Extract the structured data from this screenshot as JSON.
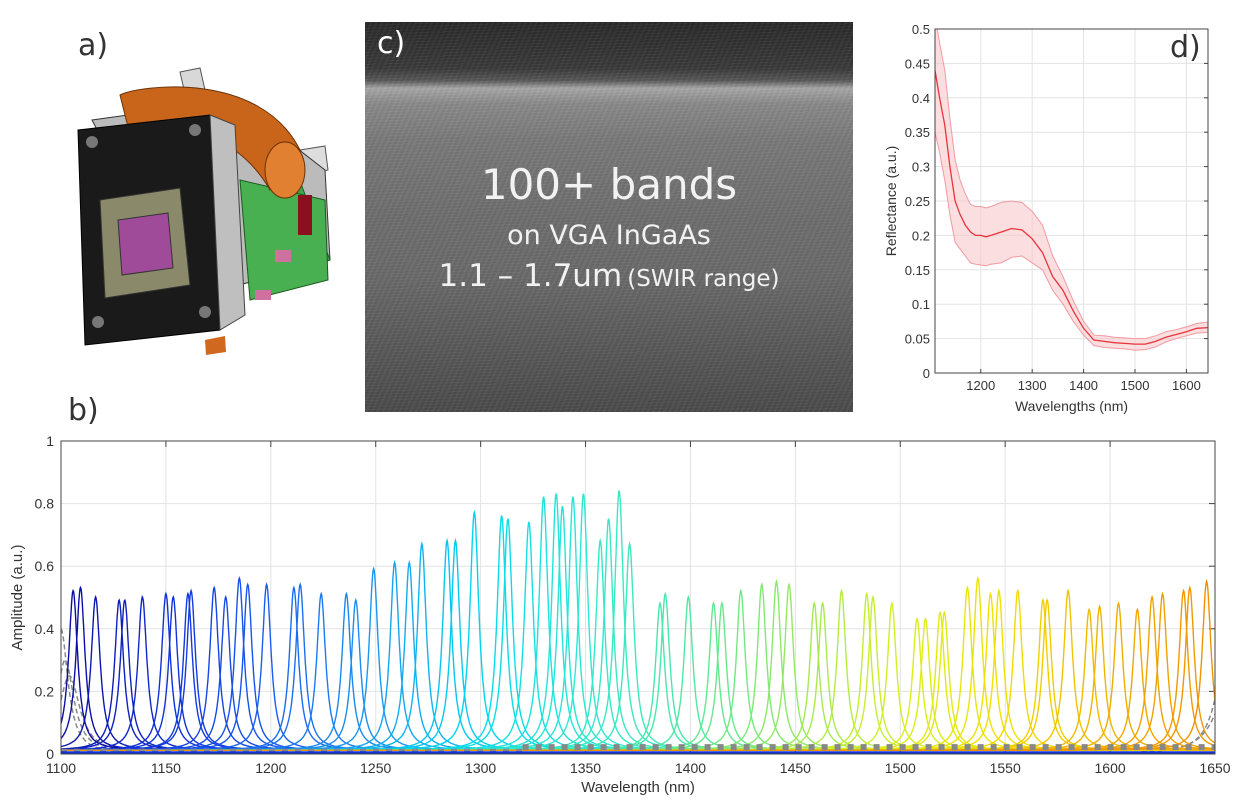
{
  "labels": {
    "a": "a)",
    "b": "b)",
    "c": "c)",
    "d": "d)"
  },
  "panel_c": {
    "line1": "100+ bands",
    "line2": "on VGA InGaAs",
    "line3_main": "1.1 – 1.7um",
    "line3_small": "(SWIR range)"
  },
  "chart_data": [
    {
      "id": "b",
      "type": "line",
      "xlabel": "Wavelength (nm)",
      "ylabel": "Amplitude (a.u.)",
      "xlim": [
        1100,
        1650
      ],
      "ylim": [
        0,
        1
      ],
      "xticks": [
        "1100",
        "1150",
        "1200",
        "1250",
        "1300",
        "1350",
        "1400",
        "1450",
        "1500",
        "1550",
        "1600",
        "1650"
      ],
      "yticks": [
        "0",
        "0.2",
        "0.4",
        "0.6",
        "0.8",
        "1"
      ],
      "grid": true,
      "colormap": [
        "#0a0a9a",
        "#1030d8",
        "#1a60f0",
        "#1a98f0",
        "#00d8f0",
        "#30e8d0",
        "#50e8a0",
        "#98e860",
        "#d8f020",
        "#f0e000",
        "#f0b000",
        "#f09000"
      ],
      "peaks": [
        {
          "center": 1105.8,
          "amplitude": 0.51
        },
        {
          "center": 1109.3,
          "amplitude": 0.52
        },
        {
          "center": 1116.5,
          "amplitude": 0.49
        },
        {
          "center": 1127.7,
          "amplitude": 0.48
        },
        {
          "center": 1130.4,
          "amplitude": 0.48
        },
        {
          "center": 1138.8,
          "amplitude": 0.49
        },
        {
          "center": 1150,
          "amplitude": 0.5
        },
        {
          "center": 1153.5,
          "amplitude": 0.49
        },
        {
          "center": 1160.5,
          "amplitude": 0.5
        },
        {
          "center": 1162,
          "amplitude": 0.51
        },
        {
          "center": 1173,
          "amplitude": 0.52
        },
        {
          "center": 1178.5,
          "amplitude": 0.49
        },
        {
          "center": 1185,
          "amplitude": 0.55
        },
        {
          "center": 1189,
          "amplitude": 0.53
        },
        {
          "center": 1198,
          "amplitude": 0.53
        },
        {
          "center": 1211,
          "amplitude": 0.52
        },
        {
          "center": 1214,
          "amplitude": 0.53
        },
        {
          "center": 1224,
          "amplitude": 0.5
        },
        {
          "center": 1236,
          "amplitude": 0.5
        },
        {
          "center": 1240.5,
          "amplitude": 0.48
        },
        {
          "center": 1249,
          "amplitude": 0.58
        },
        {
          "center": 1259,
          "amplitude": 0.6
        },
        {
          "center": 1266,
          "amplitude": 0.6
        },
        {
          "center": 1272,
          "amplitude": 0.66
        },
        {
          "center": 1284,
          "amplitude": 0.67
        },
        {
          "center": 1288,
          "amplitude": 0.67
        },
        {
          "center": 1297,
          "amplitude": 0.76
        },
        {
          "center": 1310,
          "amplitude": 0.75
        },
        {
          "center": 1313,
          "amplitude": 0.74
        },
        {
          "center": 1323,
          "amplitude": 0.73
        },
        {
          "center": 1330,
          "amplitude": 0.81
        },
        {
          "center": 1336,
          "amplitude": 0.82
        },
        {
          "center": 1339,
          "amplitude": 0.78
        },
        {
          "center": 1344,
          "amplitude": 0.81
        },
        {
          "center": 1349,
          "amplitude": 0.82
        },
        {
          "center": 1357,
          "amplitude": 0.67
        },
        {
          "center": 1361,
          "amplitude": 0.74
        },
        {
          "center": 1366,
          "amplitude": 0.83
        },
        {
          "center": 1371,
          "amplitude": 0.66
        },
        {
          "center": 1385.5,
          "amplitude": 0.47
        },
        {
          "center": 1388,
          "amplitude": 0.5
        },
        {
          "center": 1399,
          "amplitude": 0.49
        },
        {
          "center": 1411,
          "amplitude": 0.47
        },
        {
          "center": 1415,
          "amplitude": 0.47
        },
        {
          "center": 1424,
          "amplitude": 0.51
        },
        {
          "center": 1434,
          "amplitude": 0.53
        },
        {
          "center": 1441,
          "amplitude": 0.54
        },
        {
          "center": 1447,
          "amplitude": 0.53
        },
        {
          "center": 1459,
          "amplitude": 0.47
        },
        {
          "center": 1463,
          "amplitude": 0.47
        },
        {
          "center": 1472,
          "amplitude": 0.51
        },
        {
          "center": 1484,
          "amplitude": 0.5
        },
        {
          "center": 1487,
          "amplitude": 0.49
        },
        {
          "center": 1496,
          "amplitude": 0.47
        },
        {
          "center": 1508,
          "amplitude": 0.42
        },
        {
          "center": 1512,
          "amplitude": 0.42
        },
        {
          "center": 1519,
          "amplitude": 0.44
        },
        {
          "center": 1521,
          "amplitude": 0.44
        },
        {
          "center": 1532,
          "amplitude": 0.52
        },
        {
          "center": 1537,
          "amplitude": 0.55
        },
        {
          "center": 1543,
          "amplitude": 0.5
        },
        {
          "center": 1547,
          "amplitude": 0.51
        },
        {
          "center": 1556,
          "amplitude": 0.51
        },
        {
          "center": 1568,
          "amplitude": 0.48
        },
        {
          "center": 1570,
          "amplitude": 0.48
        },
        {
          "center": 1580,
          "amplitude": 0.51
        },
        {
          "center": 1590,
          "amplitude": 0.45
        },
        {
          "center": 1595,
          "amplitude": 0.46
        },
        {
          "center": 1604,
          "amplitude": 0.47
        },
        {
          "center": 1613,
          "amplitude": 0.45
        },
        {
          "center": 1620,
          "amplitude": 0.49
        },
        {
          "center": 1625,
          "amplitude": 0.5
        },
        {
          "center": 1635,
          "amplitude": 0.51
        },
        {
          "center": 1638,
          "amplitude": 0.52
        },
        {
          "center": 1646,
          "amplitude": 0.54
        }
      ]
    },
    {
      "id": "d",
      "type": "line",
      "xlabel": "Wavelengths (nm)",
      "ylabel": "Reflectance (a.u.)",
      "xlim": [
        1111,
        1642
      ],
      "ylim": [
        0,
        0.5
      ],
      "xticks": [
        "1200",
        "1300",
        "1400",
        "1500",
        "1600"
      ],
      "yticks": [
        "0",
        "0.05",
        "0.1",
        "0.15",
        "0.2",
        "0.25",
        "0.3",
        "0.35",
        "0.4",
        "0.45",
        "0.5"
      ],
      "grid": true,
      "color": "#e8343a",
      "band_color": "#f9c8cc",
      "x": [
        1111,
        1120,
        1130,
        1140,
        1150,
        1160,
        1170,
        1180,
        1190,
        1200,
        1210,
        1220,
        1240,
        1260,
        1280,
        1300,
        1320,
        1340,
        1360,
        1380,
        1400,
        1420,
        1440,
        1460,
        1480,
        1500,
        1520,
        1540,
        1560,
        1580,
        1600,
        1620,
        1642
      ],
      "mean": [
        0.44,
        0.4,
        0.36,
        0.3,
        0.25,
        0.23,
        0.215,
        0.205,
        0.2,
        0.2,
        0.198,
        0.2,
        0.205,
        0.21,
        0.208,
        0.195,
        0.175,
        0.14,
        0.12,
        0.09,
        0.065,
        0.048,
        0.046,
        0.044,
        0.043,
        0.042,
        0.042,
        0.046,
        0.052,
        0.056,
        0.06,
        0.065,
        0.066
      ],
      "lower": [
        0.35,
        0.32,
        0.28,
        0.23,
        0.19,
        0.18,
        0.17,
        0.16,
        0.158,
        0.157,
        0.156,
        0.158,
        0.16,
        0.168,
        0.17,
        0.16,
        0.15,
        0.12,
        0.1,
        0.075,
        0.055,
        0.04,
        0.037,
        0.036,
        0.035,
        0.033,
        0.034,
        0.038,
        0.045,
        0.05,
        0.054,
        0.058,
        0.059
      ],
      "upper": [
        0.52,
        0.48,
        0.44,
        0.37,
        0.31,
        0.28,
        0.26,
        0.245,
        0.242,
        0.242,
        0.24,
        0.242,
        0.248,
        0.25,
        0.248,
        0.235,
        0.215,
        0.17,
        0.14,
        0.105,
        0.075,
        0.055,
        0.054,
        0.052,
        0.051,
        0.05,
        0.05,
        0.054,
        0.06,
        0.063,
        0.067,
        0.072,
        0.074
      ]
    }
  ]
}
